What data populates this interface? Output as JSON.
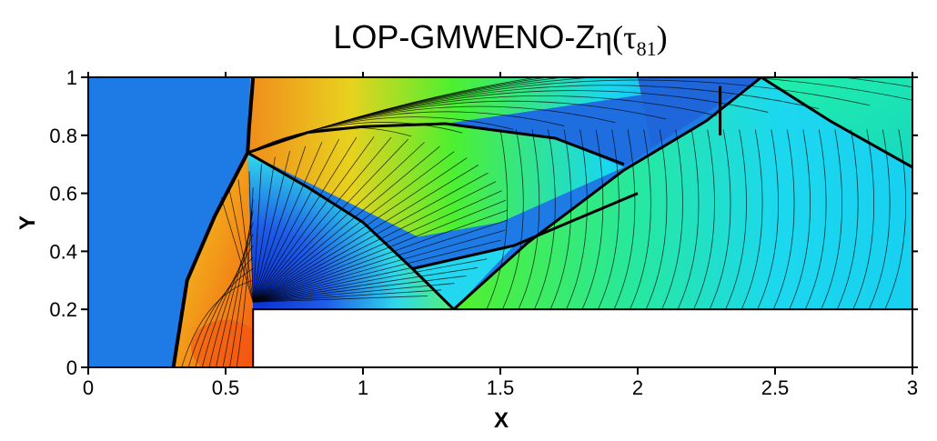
{
  "chart_data": {
    "type": "heatmap",
    "title": {
      "prefix": "LOP-GMWENO-Z",
      "greek": "η",
      "open_paren": "(",
      "tau": "τ",
      "subscript": "81",
      "close_paren": ")"
    },
    "xlabel": "X",
    "ylabel": "Y",
    "xlim": [
      0,
      3
    ],
    "ylim": [
      0,
      1
    ],
    "x_ticks": [
      "0",
      "0.5",
      "1",
      "1.5",
      "2",
      "2.5",
      "3"
    ],
    "y_ticks": [
      "0",
      "0.2",
      "0.4",
      "0.6",
      "0.8",
      "1"
    ],
    "step": {
      "x_start": 0.6,
      "height": 0.2
    },
    "colormap": [
      "#1f3fe0",
      "#1e7be6",
      "#19cff0",
      "#19e8c0",
      "#4cf020",
      "#c0e21e",
      "#f6c81d",
      "#f28a1a",
      "#f25c12"
    ],
    "shocks": [
      {
        "name": "bow-shock",
        "points": [
          [
            0.31,
            0.0
          ],
          [
            0.36,
            0.3
          ],
          [
            0.46,
            0.52
          ],
          [
            0.58,
            0.74
          ],
          [
            0.585,
            0.82
          ],
          [
            0.6,
            1.0
          ]
        ]
      },
      {
        "name": "mach-stem-slipline",
        "points": [
          [
            0.58,
            0.74
          ],
          [
            0.8,
            0.81
          ],
          [
            1.0,
            0.83
          ],
          [
            1.3,
            0.84
          ],
          [
            1.7,
            0.79
          ],
          [
            1.95,
            0.7
          ]
        ]
      },
      {
        "name": "reflected-shock",
        "points": [
          [
            0.58,
            0.74
          ],
          [
            0.8,
            0.62
          ],
          [
            1.0,
            0.5
          ],
          [
            1.18,
            0.34
          ],
          [
            1.33,
            0.2
          ]
        ]
      },
      {
        "name": "step-reflection",
        "points": [
          [
            1.33,
            0.2
          ],
          [
            1.6,
            0.43
          ],
          [
            1.95,
            0.68
          ],
          [
            2.25,
            0.85
          ],
          [
            2.45,
            1.0
          ]
        ]
      },
      {
        "name": "top-reflection",
        "points": [
          [
            2.45,
            1.0
          ],
          [
            2.7,
            0.85
          ],
          [
            3.0,
            0.69
          ]
        ]
      },
      {
        "name": "contact-line",
        "points": [
          [
            1.18,
            0.34
          ],
          [
            1.55,
            0.42
          ],
          [
            2.0,
            0.6
          ]
        ]
      },
      {
        "name": "weak-wave",
        "points": [
          [
            2.3,
            0.97
          ],
          [
            2.3,
            0.8
          ]
        ]
      }
    ]
  }
}
